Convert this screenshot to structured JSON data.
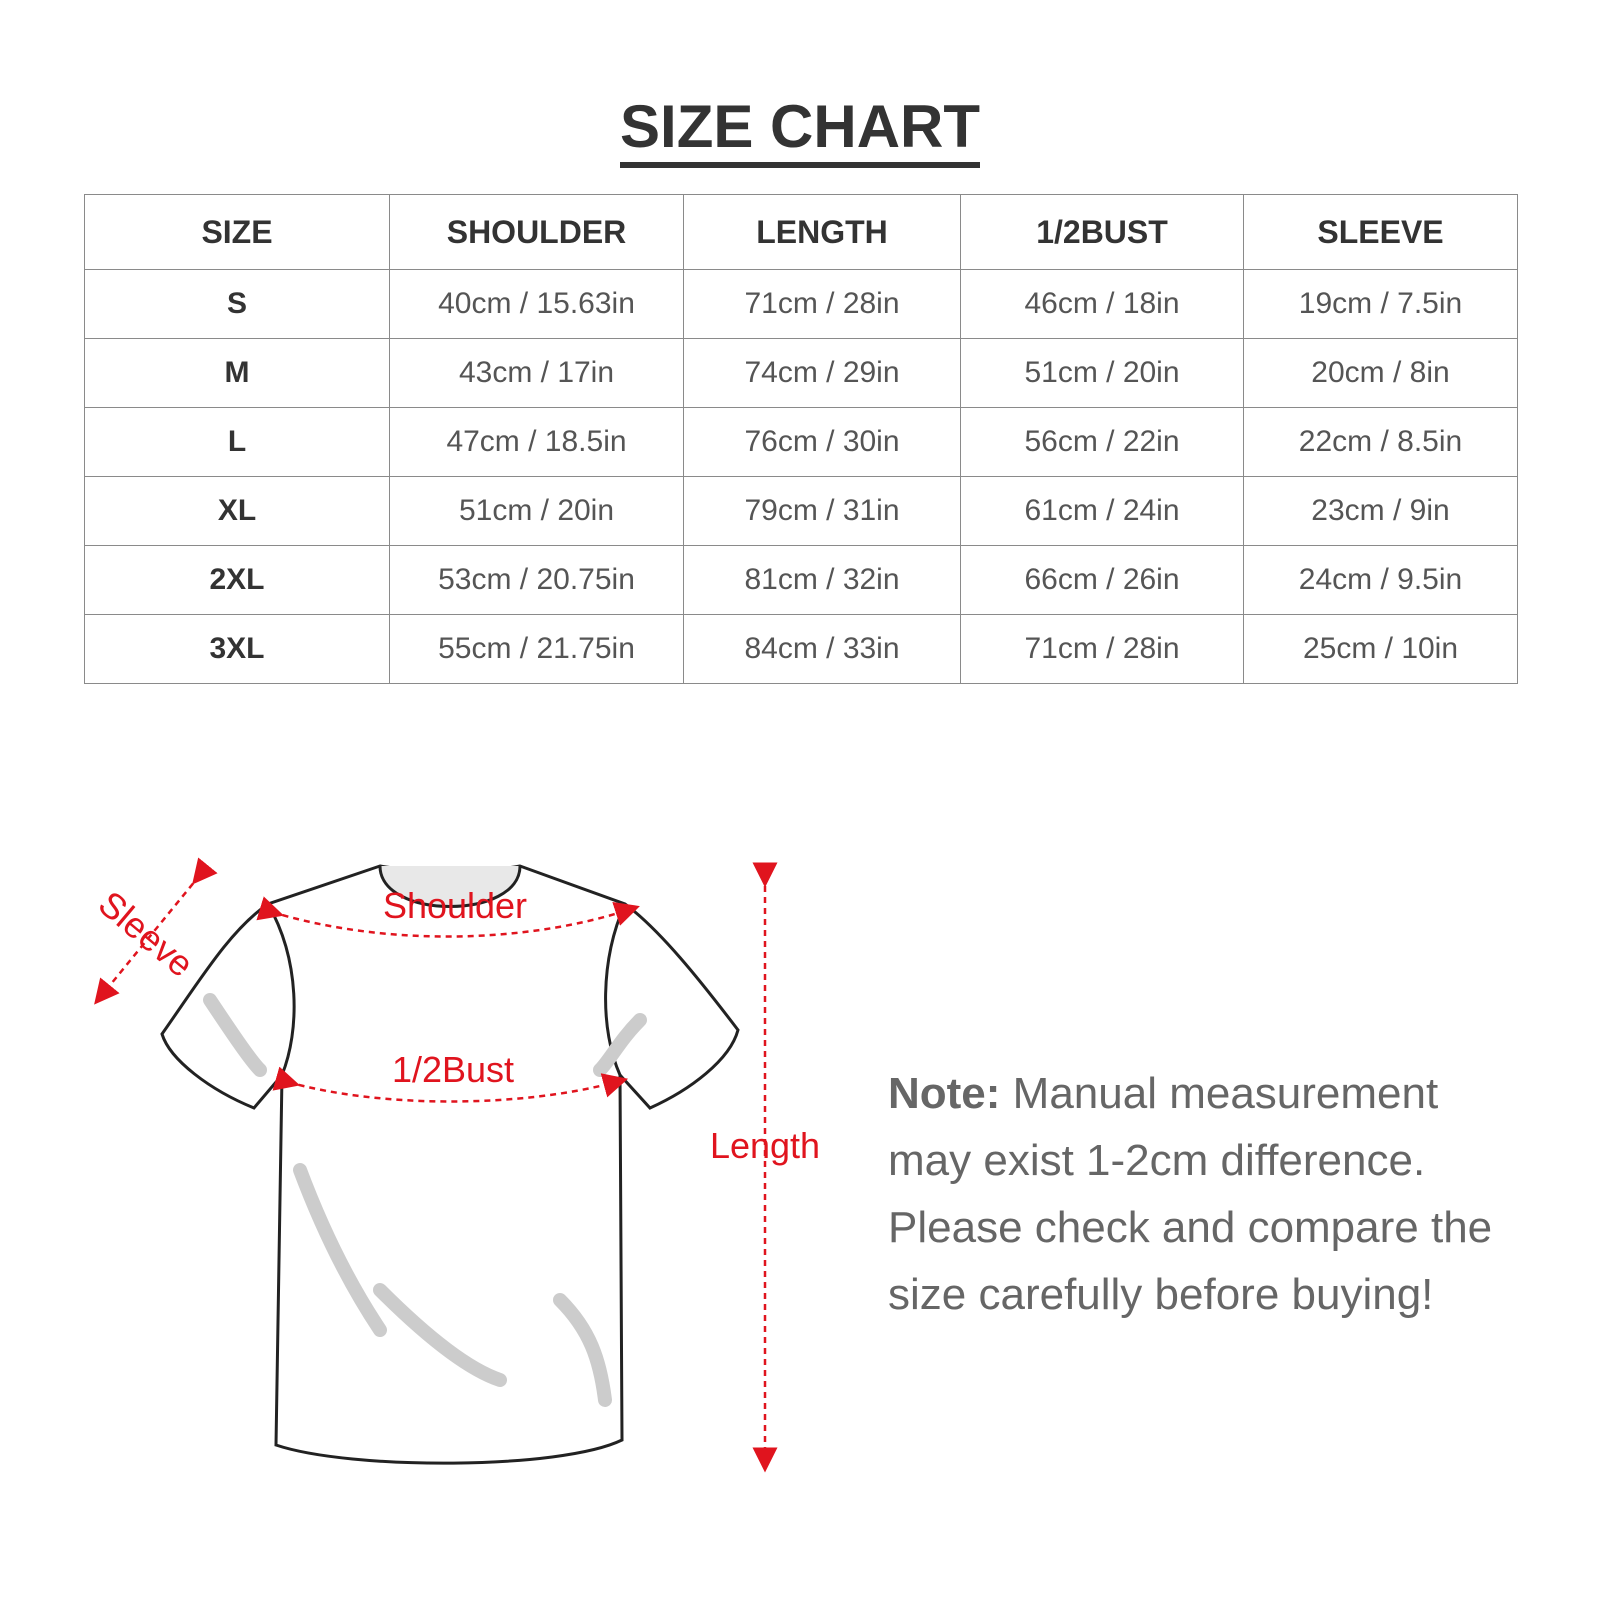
{
  "title": "SIZE CHART",
  "table": {
    "headers": [
      "SIZE",
      "SHOULDER",
      "LENGTH",
      "1/2BUST",
      "SLEEVE"
    ],
    "rows": [
      [
        "S",
        "40cm / 15.63in",
        "71cm / 28in",
        "46cm / 18in",
        "19cm / 7.5in"
      ],
      [
        "M",
        "43cm / 17in",
        "74cm / 29in",
        "51cm / 20in",
        "20cm / 8in"
      ],
      [
        "L",
        "47cm / 18.5in",
        "76cm / 30in",
        "56cm / 22in",
        "22cm / 8.5in"
      ],
      [
        "XL",
        "51cm / 20in",
        "79cm / 31in",
        "61cm / 24in",
        "23cm / 9in"
      ],
      [
        "2XL",
        "53cm / 20.75in",
        "81cm / 32in",
        "66cm / 26in",
        "24cm / 9.5in"
      ],
      [
        "3XL",
        "55cm / 21.75in",
        "84cm / 33in",
        "71cm / 28in",
        "25cm / 10in"
      ]
    ]
  },
  "diagram": {
    "labels": {
      "sleeve": "Sleeve",
      "shoulder": "Shoulder",
      "bust": "1/2Bust",
      "length": "Length"
    },
    "accent_color": "#e0141e"
  },
  "note": {
    "label": "Note:",
    "text": "Manual measurement may exist 1-2cm difference. Please check and compare the size carefully before buying!"
  }
}
